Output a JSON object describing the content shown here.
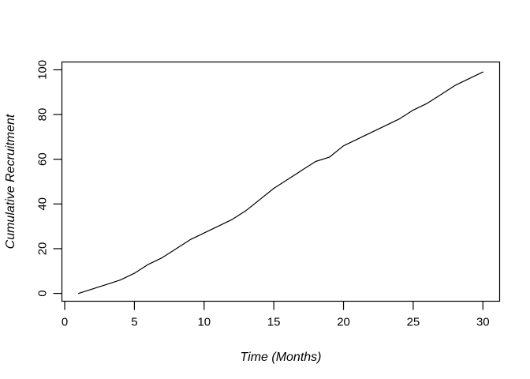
{
  "chart_data": {
    "type": "line",
    "title": "",
    "xlabel": "Time (Months)",
    "ylabel": "Cumulative Recruitment",
    "x": [
      1,
      2,
      3,
      4,
      5,
      6,
      7,
      8,
      9,
      10,
      11,
      12,
      13,
      14,
      15,
      16,
      17,
      18,
      19,
      20,
      21,
      22,
      23,
      24,
      25,
      26,
      27,
      28,
      29,
      30
    ],
    "values": [
      0,
      2,
      4,
      6,
      9,
      13,
      16,
      20,
      24,
      27,
      30,
      33,
      37,
      42,
      47,
      51,
      55,
      59,
      61,
      66,
      69,
      72,
      75,
      78,
      82,
      85,
      89,
      93,
      96,
      99
    ],
    "x_ticks": [
      0,
      5,
      10,
      15,
      20,
      25,
      30
    ],
    "y_ticks": [
      0,
      20,
      40,
      60,
      80,
      100
    ],
    "xlim": [
      -0.2,
      31.2
    ],
    "ylim": [
      -3.5,
      103.5
    ],
    "grid": false,
    "legend": "none",
    "line_color": "#000000",
    "axis_color": "#000000",
    "background": "#ffffff"
  }
}
